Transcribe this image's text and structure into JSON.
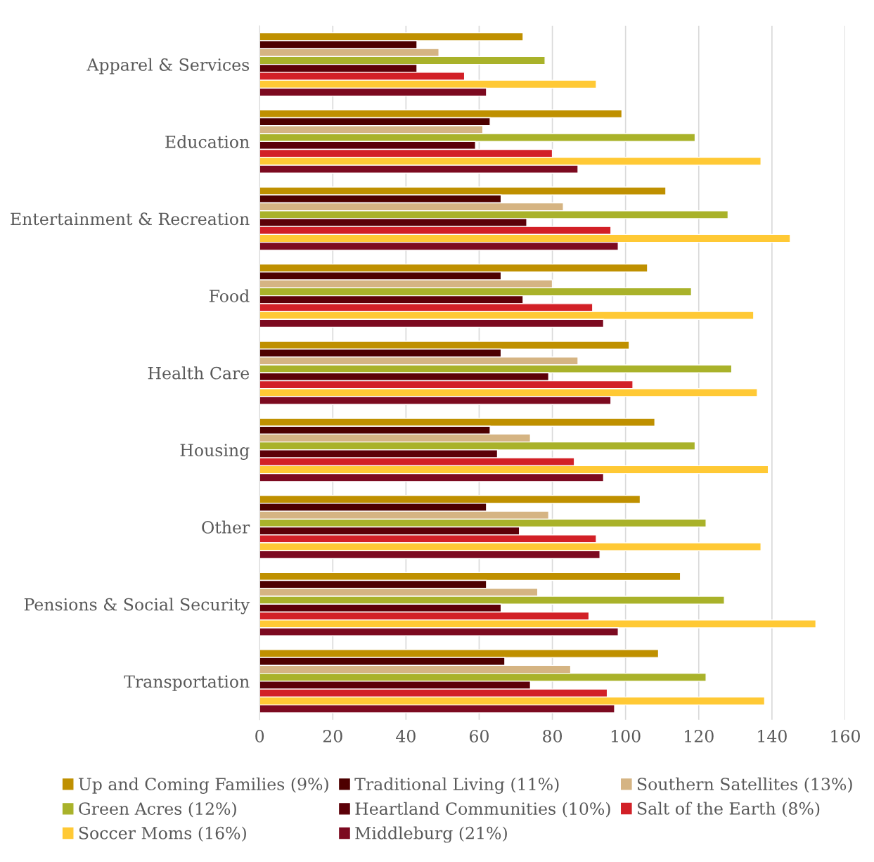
{
  "chart_data": {
    "type": "bar",
    "orientation": "horizontal",
    "categories": [
      "Apparel & Services",
      "Education",
      "Entertainment & Recreation",
      "Food",
      "Health Care",
      "Housing",
      "Other",
      "Pensions & Social Security",
      "Transportation"
    ],
    "series": [
      {
        "name": "Up and Coming Families (9%)",
        "color": "#bf9000",
        "values": [
          72,
          99,
          111,
          106,
          101,
          108,
          104,
          115,
          109
        ]
      },
      {
        "name": "Traditional Living (11%)",
        "color": "#4d0000",
        "values": [
          43,
          63,
          66,
          66,
          66,
          63,
          62,
          62,
          67
        ]
      },
      {
        "name": "Southern Satellites (13%)",
        "color": "#d5b483",
        "values": [
          49,
          61,
          83,
          80,
          87,
          74,
          79,
          76,
          85
        ]
      },
      {
        "name": "Green Acres (12%)",
        "color": "#a9b22a",
        "values": [
          78,
          119,
          128,
          118,
          129,
          119,
          122,
          127,
          122
        ]
      },
      {
        "name": "Heartland Communities (10%)",
        "color": "#5c0008",
        "values": [
          43,
          59,
          73,
          72,
          79,
          65,
          71,
          66,
          74
        ]
      },
      {
        "name": "Salt of the Earth (8%)",
        "color": "#d22027",
        "values": [
          56,
          80,
          96,
          91,
          102,
          86,
          92,
          90,
          95
        ]
      },
      {
        "name": "Soccer Moms (16%)",
        "color": "#ffc935",
        "values": [
          92,
          137,
          145,
          135,
          136,
          139,
          137,
          152,
          138
        ]
      },
      {
        "name": "Middleburg (21%)",
        "color": "#7c0a20",
        "values": [
          62,
          87,
          98,
          94,
          96,
          94,
          93,
          98,
          97
        ]
      }
    ],
    "xlim": [
      0,
      160
    ],
    "xticks": [
      0,
      20,
      40,
      60,
      80,
      100,
      120,
      140,
      160
    ],
    "grid": "x",
    "legend": "bottom"
  }
}
